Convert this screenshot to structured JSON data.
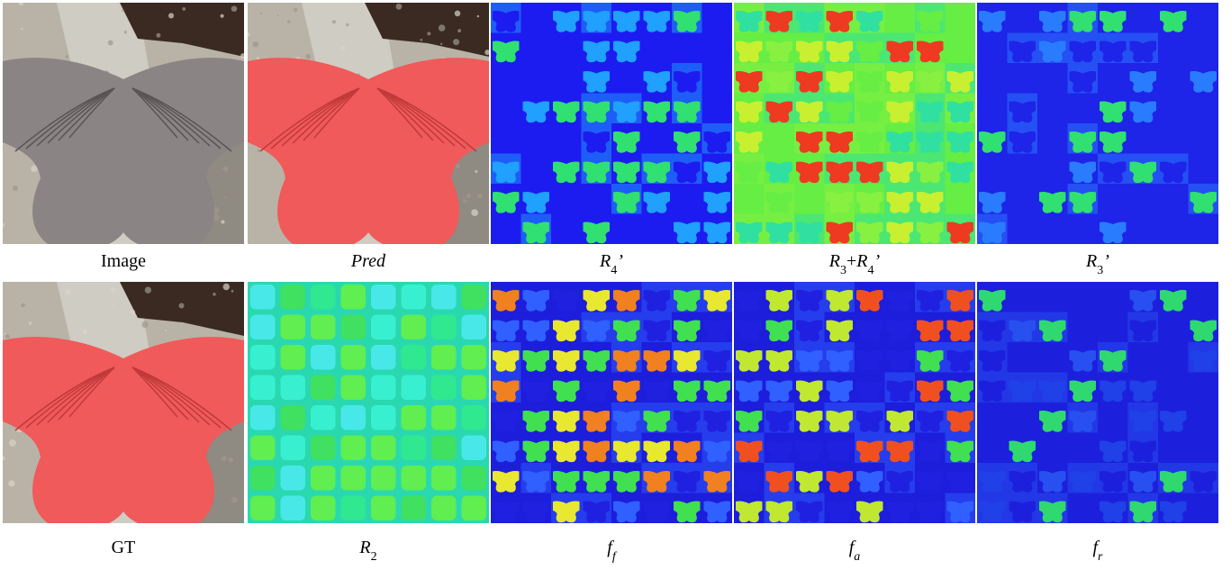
{
  "panels": [
    {
      "caption": [
        {
          "text": "Image"
        }
      ]
    },
    {
      "caption": [
        {
          "text": "Pred",
          "italic": true
        }
      ]
    },
    {
      "caption": [
        {
          "text": "R",
          "italic": true,
          "sub": "4"
        },
        {
          "text": "’",
          "italic": true
        }
      ]
    },
    {
      "caption": [
        {
          "text": "R",
          "italic": true,
          "sub": "3"
        },
        {
          "text": "+"
        },
        {
          "text": "R",
          "italic": true,
          "sub": "4"
        },
        {
          "text": "’",
          "italic": true
        }
      ]
    },
    {
      "caption": [
        {
          "text": "R",
          "italic": true,
          "sub": "3"
        },
        {
          "text": "’",
          "italic": true
        }
      ]
    },
    {
      "caption": [
        {
          "text": "GT"
        }
      ]
    },
    {
      "caption": [
        {
          "text": "R",
          "italic": true,
          "sub": "2"
        }
      ]
    },
    {
      "caption": [
        {
          "text": "f",
          "italic": true,
          "sub": "f"
        }
      ]
    },
    {
      "caption": [
        {
          "text": "f",
          "italic": true,
          "sub": "a"
        }
      ]
    },
    {
      "caption": [
        {
          "text": "f",
          "italic": true,
          "sub": "r"
        }
      ]
    }
  ]
}
